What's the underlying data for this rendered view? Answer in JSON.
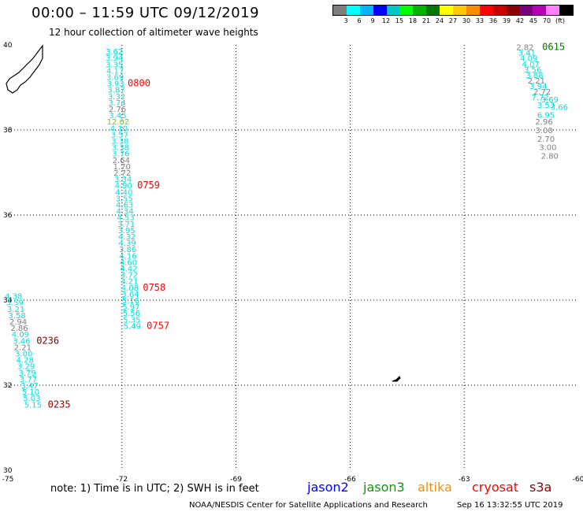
{
  "header": {
    "title": "00:00 – 11:59 UTC 09/12/2019",
    "subtitle": "12 hour collection of altimeter wave heights"
  },
  "colorbar": {
    "colors": [
      "#7f7f7f",
      "#00ffff",
      "#00b4ff",
      "#0000ff",
      "#00c8c8",
      "#00ff00",
      "#00b400",
      "#007800",
      "#ffff00",
      "#ffc800",
      "#ff8c00",
      "#ff0000",
      "#c80000",
      "#8c0000",
      "#780078",
      "#b400b4",
      "#ff80ff",
      "#000000"
    ],
    "labels": [
      "3",
      "6",
      "9",
      "12",
      "15",
      "18",
      "21",
      "24",
      "27",
      "30",
      "33",
      "36",
      "39",
      "42",
      "45",
      "70",
      "(ft)"
    ]
  },
  "chart_data": {
    "type": "scatter",
    "title": "00:00 – 11:59 UTC 09/12/2019",
    "subtitle": "12 hour collection of altimeter wave heights",
    "xlim": [
      -75,
      -60
    ],
    "ylim": [
      30,
      40
    ],
    "x_ticks": [
      "-75",
      "-72",
      "-69",
      "-66",
      "-63",
      "-60"
    ],
    "y_ticks": [
      "30",
      "32",
      "34",
      "36",
      "38",
      "40"
    ],
    "grid": true,
    "units": "ft",
    "tracks": [
      {
        "name": "track-left-center",
        "points": [
          {
            "lon": -72.2,
            "lat": 39.85,
            "swh": "3.62",
            "color": "#00e0e0"
          },
          {
            "lon": -72.2,
            "lat": 39.7,
            "swh": "3.94",
            "color": "#00e0e0"
          },
          {
            "lon": -72.2,
            "lat": 39.55,
            "swh": "3.35",
            "color": "#00e0e0"
          },
          {
            "lon": -72.18,
            "lat": 39.4,
            "swh": "4.17",
            "color": "#00e0e0"
          },
          {
            "lon": -72.18,
            "lat": 39.25,
            "swh": "3.69",
            "color": "#00e0e0"
          },
          {
            "lon": -72.17,
            "lat": 39.1,
            "swh": "3.93",
            "color": "#00e0e0"
          },
          {
            "lon": -72.15,
            "lat": 38.95,
            "swh": "3.87",
            "color": "#00e0e0"
          },
          {
            "lon": -72.14,
            "lat": 38.8,
            "swh": "3.32",
            "color": "#00e0e0"
          },
          {
            "lon": -72.13,
            "lat": 38.65,
            "swh": "3.74",
            "color": "#00e0e0"
          },
          {
            "lon": -72.12,
            "lat": 38.5,
            "swh": "2.76",
            "color": "#7f7f7f"
          },
          {
            "lon": -72.11,
            "lat": 38.35,
            "swh": "3.45",
            "color": "#00e0e0"
          },
          {
            "lon": -72.1,
            "lat": 38.2,
            "swh": "12.02",
            "color": "#66cc33"
          },
          {
            "lon": -72.08,
            "lat": 38.05,
            "swh": "4.10",
            "color": "#00e0e0"
          },
          {
            "lon": -72.06,
            "lat": 37.9,
            "swh": "3.57",
            "color": "#00e0e0"
          },
          {
            "lon": -72.05,
            "lat": 37.75,
            "swh": "3.38",
            "color": "#00e0e0"
          },
          {
            "lon": -72.04,
            "lat": 37.6,
            "swh": "3.38",
            "color": "#00e0e0"
          },
          {
            "lon": -72.03,
            "lat": 37.45,
            "swh": "3.76",
            "color": "#00e0e0"
          },
          {
            "lon": -72.02,
            "lat": 37.3,
            "swh": "2.64",
            "color": "#7f7f7f"
          },
          {
            "lon": -72.0,
            "lat": 37.15,
            "swh": "1.70",
            "color": "#7f7f7f"
          },
          {
            "lon": -71.99,
            "lat": 37.0,
            "swh": "2.72",
            "color": "#7f7f7f"
          },
          {
            "lon": -71.97,
            "lat": 36.85,
            "swh": "3.34",
            "color": "#00e0e0"
          },
          {
            "lon": -71.96,
            "lat": 36.7,
            "swh": "4.90",
            "color": "#00e0e0"
          },
          {
            "lon": -71.95,
            "lat": 36.55,
            "swh": "4.40",
            "color": "#00e0e0"
          },
          {
            "lon": -71.94,
            "lat": 36.4,
            "swh": "3.55",
            "color": "#00e0e0"
          },
          {
            "lon": -71.93,
            "lat": 36.25,
            "swh": "4.63",
            "color": "#00e0e0"
          },
          {
            "lon": -71.92,
            "lat": 36.1,
            "swh": "4.34",
            "color": "#00e0e0"
          },
          {
            "lon": -71.9,
            "lat": 35.95,
            "swh": "4.53",
            "color": "#00e0e0"
          },
          {
            "lon": -71.89,
            "lat": 35.8,
            "swh": "3.71",
            "color": "#00e0e0"
          },
          {
            "lon": -71.88,
            "lat": 35.65,
            "swh": "3.95",
            "color": "#00e0e0"
          },
          {
            "lon": -71.87,
            "lat": 35.5,
            "swh": "4.32",
            "color": "#00e0e0"
          },
          {
            "lon": -71.86,
            "lat": 35.35,
            "swh": "4.39",
            "color": "#00e0e0"
          },
          {
            "lon": -71.85,
            "lat": 35.2,
            "swh": "3.86",
            "color": "#00e0e0"
          },
          {
            "lon": -71.84,
            "lat": 35.05,
            "swh": "4.16",
            "color": "#00e0e0"
          },
          {
            "lon": -71.83,
            "lat": 34.9,
            "swh": "4.60",
            "color": "#00e0e0"
          },
          {
            "lon": -71.82,
            "lat": 34.75,
            "swh": "4.42",
            "color": "#00e0e0"
          },
          {
            "lon": -71.81,
            "lat": 34.6,
            "swh": "3.72",
            "color": "#00e0e0"
          },
          {
            "lon": -71.8,
            "lat": 34.45,
            "swh": "4.21",
            "color": "#00e0e0"
          },
          {
            "lon": -71.79,
            "lat": 34.3,
            "swh": "4.08",
            "color": "#00e0e0"
          },
          {
            "lon": -71.78,
            "lat": 34.15,
            "swh": "3.64",
            "color": "#00e0e0"
          },
          {
            "lon": -71.77,
            "lat": 34.0,
            "swh": "5.16",
            "color": "#00e0e0"
          },
          {
            "lon": -71.76,
            "lat": 33.85,
            "swh": "5.97",
            "color": "#00e0e0"
          },
          {
            "lon": -71.75,
            "lat": 33.7,
            "swh": "5.56",
            "color": "#00e0e0"
          },
          {
            "lon": -71.74,
            "lat": 33.55,
            "swh": "5.35",
            "color": "#00e0e0"
          },
          {
            "lon": -71.73,
            "lat": 33.4,
            "swh": "5.49",
            "color": "#00e0e0"
          }
        ]
      },
      {
        "name": "track-left-edge",
        "points": [
          {
            "lon": -74.85,
            "lat": 34.1,
            "swh": "4.38",
            "color": "#00e0e0"
          },
          {
            "lon": -74.82,
            "lat": 33.95,
            "swh": "3.59",
            "color": "#00e0e0"
          },
          {
            "lon": -74.79,
            "lat": 33.8,
            "swh": "3.21",
            "color": "#00e0e0"
          },
          {
            "lon": -74.76,
            "lat": 33.65,
            "swh": "3.58",
            "color": "#00e0e0"
          },
          {
            "lon": -74.73,
            "lat": 33.5,
            "swh": "2.94",
            "color": "#7f7f7f"
          },
          {
            "lon": -74.7,
            "lat": 33.35,
            "swh": "2.86",
            "color": "#7f7f7f"
          },
          {
            "lon": -74.67,
            "lat": 33.2,
            "swh": "4.09",
            "color": "#00e0e0"
          },
          {
            "lon": -74.64,
            "lat": 33.05,
            "swh": "3.46",
            "color": "#00e0e0"
          },
          {
            "lon": -74.61,
            "lat": 32.9,
            "swh": "2.21",
            "color": "#7f7f7f"
          },
          {
            "lon": -74.58,
            "lat": 32.75,
            "swh": "3.00",
            "color": "#00e0e0"
          },
          {
            "lon": -74.55,
            "lat": 32.6,
            "swh": "4.28",
            "color": "#00e0e0"
          },
          {
            "lon": -74.52,
            "lat": 32.45,
            "swh": "3.29",
            "color": "#00e0e0"
          },
          {
            "lon": -74.49,
            "lat": 32.3,
            "swh": "3.79",
            "color": "#00e0e0"
          },
          {
            "lon": -74.46,
            "lat": 32.15,
            "swh": "3.77",
            "color": "#00e0e0"
          },
          {
            "lon": -74.43,
            "lat": 32.0,
            "swh": "3.47",
            "color": "#00e0e0"
          },
          {
            "lon": -74.4,
            "lat": 31.85,
            "swh": "5.10",
            "color": "#00e0e0"
          },
          {
            "lon": -74.37,
            "lat": 31.7,
            "swh": "5.03",
            "color": "#00e0e0"
          },
          {
            "lon": -74.34,
            "lat": 31.55,
            "swh": "5.15",
            "color": "#00e0e0"
          }
        ]
      },
      {
        "name": "track-right-edge",
        "points": [
          {
            "lon": -61.4,
            "lat": 39.95,
            "swh": "2.82",
            "color": "#7f7f7f"
          },
          {
            "lon": -61.35,
            "lat": 39.82,
            "swh": "3.41",
            "color": "#00e0e0"
          },
          {
            "lon": -61.3,
            "lat": 39.69,
            "swh": "4.09",
            "color": "#00e0e0"
          },
          {
            "lon": -61.25,
            "lat": 39.56,
            "swh": "4.07",
            "color": "#00e0e0"
          },
          {
            "lon": -61.2,
            "lat": 39.43,
            "swh": "3.56",
            "color": "#00e0e0"
          },
          {
            "lon": -61.15,
            "lat": 39.3,
            "swh": "3.88",
            "color": "#00e0e0"
          },
          {
            "lon": -61.1,
            "lat": 39.17,
            "swh": "2.21",
            "color": "#7f7f7f"
          },
          {
            "lon": -61.05,
            "lat": 39.04,
            "swh": "3.94",
            "color": "#00e0e0"
          },
          {
            "lon": -60.95,
            "lat": 38.91,
            "swh": "2.72",
            "color": "#7f7f7f"
          },
          {
            "lon": -61.0,
            "lat": 38.78,
            "swh": "7.72",
            "color": "#00e0e0"
          },
          {
            "lon": -60.75,
            "lat": 38.72,
            "swh": "3.69",
            "color": "#00e0e0"
          },
          {
            "lon": -60.85,
            "lat": 38.59,
            "swh": "3.53",
            "color": "#00e0e0"
          },
          {
            "lon": -60.5,
            "lat": 38.55,
            "swh": "3.66",
            "color": "#00e0e0"
          },
          {
            "lon": -60.85,
            "lat": 38.36,
            "swh": "6.95",
            "color": "#00e0e0"
          },
          {
            "lon": -60.9,
            "lat": 38.2,
            "swh": "2.96",
            "color": "#7f7f7f"
          },
          {
            "lon": -60.9,
            "lat": 38.0,
            "swh": "3.00",
            "color": "#7f7f7f"
          },
          {
            "lon": -60.85,
            "lat": 37.8,
            "swh": "2.70",
            "color": "#7f7f7f"
          },
          {
            "lon": -60.8,
            "lat": 37.6,
            "swh": "3.00",
            "color": "#7f7f7f"
          },
          {
            "lon": -60.75,
            "lat": 37.4,
            "swh": "2.80",
            "color": "#7f7f7f"
          }
        ]
      }
    ],
    "time_labels": [
      {
        "text": "0800",
        "lon": -71.85,
        "lat": 39.1,
        "color": "#ff0000"
      },
      {
        "text": "0759",
        "lon": -71.6,
        "lat": 36.7,
        "color": "#ff0000"
      },
      {
        "text": "0236",
        "lon": -74.25,
        "lat": 33.05,
        "color": "#8c0000"
      },
      {
        "text": "0758",
        "lon": -71.45,
        "lat": 34.3,
        "color": "#ff0000"
      },
      {
        "text": "0757",
        "lon": -71.35,
        "lat": 33.4,
        "color": "#ff0000"
      },
      {
        "text": "0235",
        "lon": -73.95,
        "lat": 31.55,
        "color": "#8c0000"
      },
      {
        "text": "0615",
        "lon": -60.95,
        "lat": 39.95,
        "color": "#007800"
      }
    ]
  },
  "satellites": [
    {
      "name": "jason2",
      "color": "#0000ff"
    },
    {
      "name": "jason3",
      "color": "#00a000"
    },
    {
      "name": "altika",
      "color": "#ff8c00"
    },
    {
      "name": "cryosat",
      "color": "#ff0000"
    },
    {
      "name": "s3a",
      "color": "#8c0000"
    }
  ],
  "note": "note: 1) Time is in UTC; 2) SWH is in feet",
  "footer": {
    "credit": "NOAA/NESDIS Center for Satellite Applications and Research",
    "timestamp": "Sep 16 13:32:55 UTC 2019"
  }
}
